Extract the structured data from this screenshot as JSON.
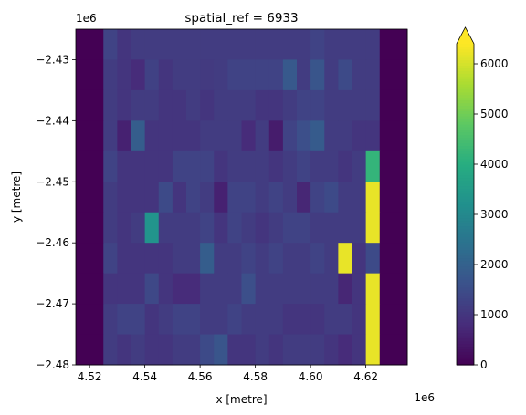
{
  "chart_data": {
    "type": "heatmap",
    "title": "spatial_ref = 6933",
    "xlabel": "x [metre]",
    "ylabel": "y [metre]",
    "x_offset_label": "1e6",
    "y_offset_label": "1e6",
    "xlim": [
      4.515,
      4.635
    ],
    "ylim": [
      -2.48,
      -2.425
    ],
    "x_ticks": [
      4.52,
      4.54,
      4.56,
      4.58,
      4.6,
      4.62
    ],
    "x_tick_labels": [
      "4.52",
      "4.54",
      "4.56",
      "4.58",
      "4.60",
      "4.62"
    ],
    "y_ticks": [
      -2.43,
      -2.44,
      -2.45,
      -2.46,
      -2.47,
      -2.48
    ],
    "y_tick_labels": [
      "−2.43",
      "−2.44",
      "−2.45",
      "−2.46",
      "−2.47",
      "−2.48"
    ],
    "colormap": "viridis",
    "colorbar": {
      "vmin": 0,
      "vmax": 6400,
      "extend": "max",
      "ticks": [
        0,
        1000,
        2000,
        3000,
        4000,
        5000,
        6000
      ],
      "tick_labels": [
        "0",
        "1000",
        "2000",
        "3000",
        "4000",
        "5000",
        "6000"
      ]
    },
    "grid": false,
    "x_edges": [
      4.515,
      4.525,
      4.53,
      4.535,
      4.54,
      4.545,
      4.55,
      4.555,
      4.56,
      4.565,
      4.57,
      4.575,
      4.58,
      4.585,
      4.59,
      4.595,
      4.6,
      4.605,
      4.61,
      4.615,
      4.62,
      4.625,
      4.635
    ],
    "y_edges": [
      -2.425,
      -2.43,
      -2.435,
      -2.44,
      -2.445,
      -2.45,
      -2.455,
      -2.46,
      -2.465,
      -2.47,
      -2.475,
      -2.48
    ],
    "values": [
      [
        0,
        1300,
        1000,
        1150,
        1150,
        1150,
        1150,
        1150,
        1150,
        1150,
        1150,
        1150,
        1150,
        1150,
        1150,
        1150,
        1300,
        1150,
        1150,
        1150,
        1150,
        0
      ],
      [
        0,
        1150,
        1000,
        800,
        1250,
        1000,
        1150,
        1150,
        1100,
        1150,
        1300,
        1300,
        1300,
        1300,
        1800,
        1150,
        1700,
        1150,
        1450,
        1150,
        1150,
        0
      ],
      [
        0,
        1150,
        1000,
        1150,
        1150,
        1000,
        1000,
        1150,
        1000,
        1150,
        1150,
        1150,
        1000,
        1000,
        1150,
        1300,
        1300,
        1150,
        1150,
        1150,
        1150,
        0
      ],
      [
        0,
        1150,
        600,
        1900,
        1000,
        1000,
        1000,
        1000,
        1150,
        1150,
        1150,
        800,
        1150,
        500,
        1300,
        1550,
        1850,
        1150,
        1150,
        1000,
        1000,
        0
      ],
      [
        0,
        1300,
        1000,
        1000,
        1000,
        1000,
        1300,
        1300,
        1300,
        1000,
        1150,
        1150,
        1150,
        1000,
        1150,
        1300,
        1150,
        1150,
        1000,
        1150,
        4200,
        0
      ],
      [
        0,
        1150,
        1000,
        1000,
        1000,
        1450,
        1000,
        1300,
        1150,
        600,
        1300,
        1300,
        1150,
        1300,
        1150,
        700,
        1300,
        1450,
        1150,
        1150,
        6200,
        0
      ],
      [
        0,
        1150,
        1000,
        1150,
        3300,
        1150,
        1150,
        1150,
        1300,
        1000,
        1300,
        1150,
        1000,
        1150,
        1300,
        1300,
        1150,
        1150,
        1150,
        1150,
        6200,
        0
      ],
      [
        0,
        1300,
        1000,
        1000,
        1000,
        1000,
        1150,
        1150,
        1900,
        1150,
        1150,
        1300,
        1150,
        1300,
        1150,
        1150,
        1300,
        1150,
        6200,
        1000,
        1450,
        0
      ],
      [
        0,
        1000,
        1000,
        1000,
        1400,
        1000,
        800,
        800,
        1150,
        1150,
        1150,
        1550,
        1150,
        1150,
        1150,
        1150,
        1150,
        1150,
        700,
        1000,
        6200,
        0
      ],
      [
        0,
        1150,
        1300,
        1300,
        1000,
        1150,
        1300,
        1300,
        1150,
        1150,
        1300,
        1150,
        1150,
        1150,
        1000,
        1000,
        1000,
        1150,
        1150,
        1000,
        6200,
        0
      ],
      [
        0,
        1150,
        1000,
        1150,
        1000,
        1000,
        1150,
        1150,
        1450,
        1700,
        1000,
        1000,
        1150,
        1000,
        1150,
        1150,
        1150,
        1000,
        800,
        1000,
        6200,
        0
      ]
    ]
  }
}
